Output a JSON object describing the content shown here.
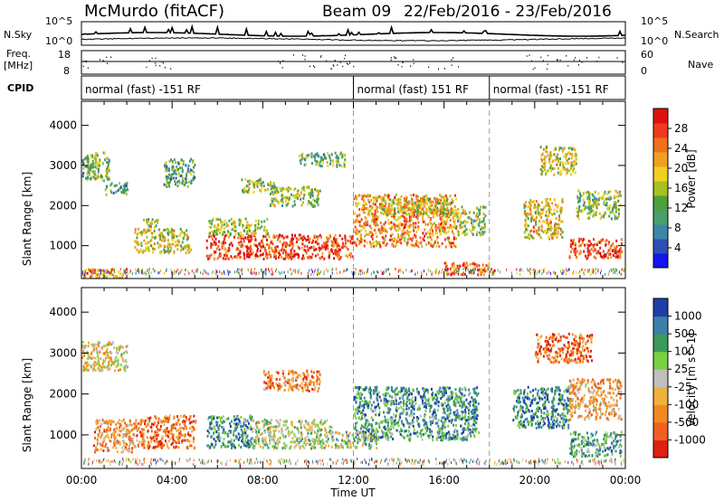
{
  "header": {
    "station": "McMurdo (fitACF)",
    "beam": "Beam 09",
    "date_range": "22/Feb/2016 - 23/Feb/2016"
  },
  "top_panels": {
    "nsky_label": "N.Sky",
    "nsky_ticks": [
      "10^5",
      "10^0"
    ],
    "nsearch_label": "N.Search",
    "nsearch_ticks": [
      "10^5",
      "10^0"
    ],
    "freq_label_1": "Freq.",
    "freq_label_2": "[MHz]",
    "freq_ticks": [
      "18",
      "8"
    ],
    "nave_label": "Nave",
    "nave_ticks": [
      "60",
      "0"
    ],
    "cpid_label": "CPID",
    "cpid_segments": [
      {
        "label": "normal (fast) -151 RF",
        "start_hour": 0,
        "end_hour": 12
      },
      {
        "label": "normal (fast) 151 RF",
        "start_hour": 12,
        "end_hour": 18
      },
      {
        "label": "normal (fast) -151 RF",
        "start_hour": 18,
        "end_hour": 24
      }
    ]
  },
  "chart_data": [
    {
      "type": "heatmap",
      "name": "power",
      "ylabel": "Slant Range [km]",
      "ylim": [
        180,
        4600
      ],
      "yticks": [
        "1000",
        "2000",
        "3000",
        "4000"
      ],
      "xlim": [
        0,
        24
      ],
      "colorbar": {
        "label": "Power [dB]",
        "ticks": [
          "4",
          "8",
          "12",
          "16",
          "20",
          "24",
          "28"
        ],
        "colors": [
          "#1414f0",
          "#2f4fb4",
          "#3d86a8",
          "#48a06a",
          "#4ea03a",
          "#a8c020",
          "#f0d020",
          "#f0a020",
          "#f07020",
          "#f03a20",
          "#e01010"
        ]
      },
      "regions": [
        {
          "t0": 0.2,
          "t1": 1.2,
          "r0": 2650,
          "r1": 3350,
          "level": 0.45
        },
        {
          "t0": 1.0,
          "t1": 2.0,
          "r0": 2300,
          "r1": 2600,
          "level": 0.35
        },
        {
          "t0": 2.3,
          "t1": 4.8,
          "r0": 850,
          "r1": 1450,
          "level": 0.55
        },
        {
          "t0": 2.7,
          "t1": 3.4,
          "r0": 1400,
          "r1": 1700,
          "level": 0.45
        },
        {
          "t0": 3.6,
          "t1": 5.0,
          "r0": 2500,
          "r1": 3200,
          "level": 0.35
        },
        {
          "t0": 5.5,
          "t1": 12.0,
          "r0": 700,
          "r1": 1300,
          "level": 0.85
        },
        {
          "t0": 5.6,
          "t1": 8.2,
          "r0": 1300,
          "r1": 1700,
          "level": 0.5
        },
        {
          "t0": 8.3,
          "t1": 10.5,
          "r0": 2000,
          "r1": 2500,
          "level": 0.45
        },
        {
          "t0": 9.5,
          "t1": 11.6,
          "r0": 3000,
          "r1": 3350,
          "level": 0.4
        },
        {
          "t0": 7.0,
          "t1": 8.5,
          "r0": 2350,
          "r1": 2700,
          "level": 0.45
        },
        {
          "t0": 12.0,
          "t1": 16.5,
          "r0": 1000,
          "r1": 2300,
          "level": 0.7
        },
        {
          "t0": 13.2,
          "t1": 16.5,
          "r0": 1800,
          "r1": 2200,
          "level": 0.55
        },
        {
          "t0": 16.5,
          "t1": 17.8,
          "r0": 1300,
          "r1": 2000,
          "level": 0.45
        },
        {
          "t0": 16.0,
          "t1": 18.2,
          "r0": 300,
          "r1": 600,
          "level": 0.8
        },
        {
          "t0": 19.5,
          "t1": 21.2,
          "r0": 1200,
          "r1": 2200,
          "level": 0.6
        },
        {
          "t0": 20.2,
          "t1": 21.8,
          "r0": 2800,
          "r1": 3500,
          "level": 0.55
        },
        {
          "t0": 21.5,
          "t1": 23.8,
          "r0": 700,
          "r1": 1200,
          "level": 0.85
        },
        {
          "t0": 21.8,
          "t1": 23.8,
          "r0": 1700,
          "r1": 2400,
          "level": 0.45
        },
        {
          "t0": 0.0,
          "t1": 0.6,
          "r0": 2700,
          "r1": 3300,
          "level": 0.4
        },
        {
          "t0": 0.0,
          "t1": 2.0,
          "r0": 200,
          "r1": 450,
          "level": 0.7
        }
      ]
    },
    {
      "type": "heatmap",
      "name": "velocity",
      "ylabel": "Slant Range [km]",
      "xlabel": "Time UT",
      "ylim": [
        180,
        4600
      ],
      "yticks": [
        "1000",
        "2000",
        "3000",
        "4000"
      ],
      "xlim": [
        0,
        24
      ],
      "xticks": [
        "00:00",
        "04:00",
        "08:00",
        "12:00",
        "16:00",
        "20:00",
        "00:00"
      ],
      "colorbar": {
        "label": "Velocity [m s^-1]",
        "ticks": [
          "1000",
          "500",
          "100",
          "25",
          "-25",
          "-100",
          "-500",
          "-1000"
        ],
        "colors": [
          "#1f3fa8",
          "#3d7fa8",
          "#3a9a5a",
          "#7ad040",
          "#bfbfbf",
          "#f0b040",
          "#f08a20",
          "#f06020",
          "#e02010"
        ]
      },
      "regions": [
        {
          "t0": 0.0,
          "t1": 2.0,
          "r0": 2600,
          "r1": 3300,
          "level": 0.45
        },
        {
          "t0": 0.5,
          "t1": 2.5,
          "r0": 600,
          "r1": 1400,
          "level": 0.3
        },
        {
          "t0": 2.5,
          "t1": 5.0,
          "r0": 700,
          "r1": 1500,
          "level": 0.2
        },
        {
          "t0": 5.5,
          "t1": 7.5,
          "r0": 700,
          "r1": 1500,
          "level": 0.75
        },
        {
          "t0": 7.5,
          "t1": 11.0,
          "r0": 700,
          "r1": 1400,
          "level": 0.55
        },
        {
          "t0": 8.0,
          "t1": 10.5,
          "r0": 2100,
          "r1": 2600,
          "level": 0.25
        },
        {
          "t0": 12.0,
          "t1": 17.5,
          "r0": 900,
          "r1": 2200,
          "level": 0.75
        },
        {
          "t0": 11.0,
          "t1": 13.0,
          "r0": 700,
          "r1": 1100,
          "level": 0.6
        },
        {
          "t0": 19.0,
          "t1": 21.5,
          "r0": 1200,
          "r1": 2200,
          "level": 0.8
        },
        {
          "t0": 20.0,
          "t1": 22.5,
          "r0": 2800,
          "r1": 3500,
          "level": 0.2
        },
        {
          "t0": 21.5,
          "t1": 23.8,
          "r0": 500,
          "r1": 1100,
          "level": 0.7
        },
        {
          "t0": 21.5,
          "t1": 23.8,
          "r0": 1400,
          "r1": 2400,
          "level": 0.35
        }
      ]
    }
  ]
}
